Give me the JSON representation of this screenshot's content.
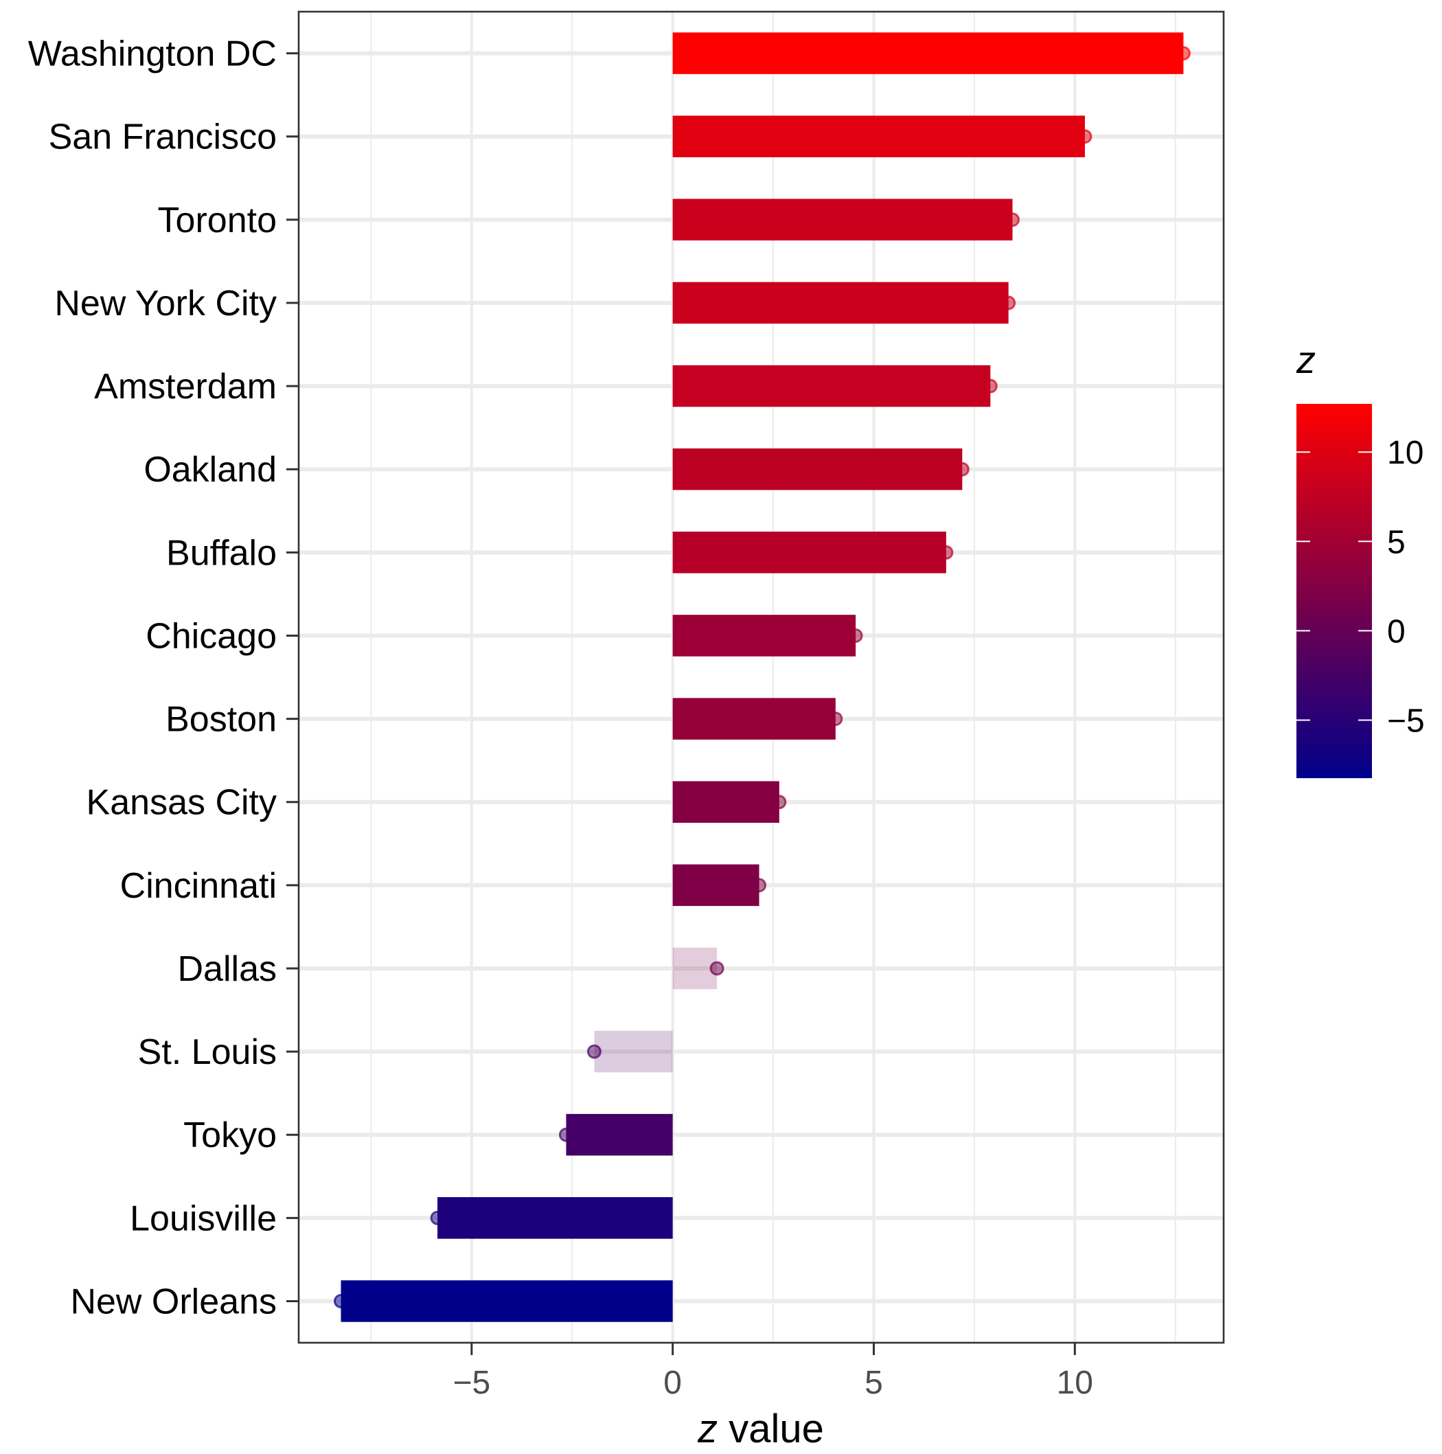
{
  "chart_data": {
    "type": "bar",
    "orientation": "horizontal",
    "categories": [
      "Washington DC",
      "San Francisco",
      "Toronto",
      "New York City",
      "Amsterdam",
      "Oakland",
      "Buffalo",
      "Chicago",
      "Boston",
      "Kansas City",
      "Cincinnati",
      "Dallas",
      "St. Louis",
      "Tokyo",
      "Louisville",
      "New Orleans"
    ],
    "values": [
      12.7,
      10.25,
      8.45,
      8.35,
      7.9,
      7.2,
      6.8,
      4.55,
      4.05,
      2.65,
      2.15,
      1.1,
      -1.95,
      -2.65,
      -5.85,
      -8.25
    ],
    "significant": [
      true,
      true,
      true,
      true,
      true,
      true,
      true,
      true,
      true,
      true,
      true,
      false,
      false,
      true,
      true,
      true
    ],
    "xlabel_italic": "z",
    "xlabel_rest": " value",
    "xlim": [
      -9.3,
      13.7
    ],
    "xticks": [
      -5,
      0,
      5,
      10
    ],
    "xtick_labels": [
      "−5",
      "0",
      "5",
      "10"
    ],
    "grid": true,
    "legend": {
      "title": "z",
      "position": "right",
      "range": [
        -8.25,
        12.7
      ],
      "ticks": [
        -5,
        0,
        5,
        10
      ],
      "tick_labels": [
        "−5",
        "0",
        "5",
        "10"
      ],
      "color_low": "#00008B",
      "color_high": "#FF0000"
    }
  }
}
